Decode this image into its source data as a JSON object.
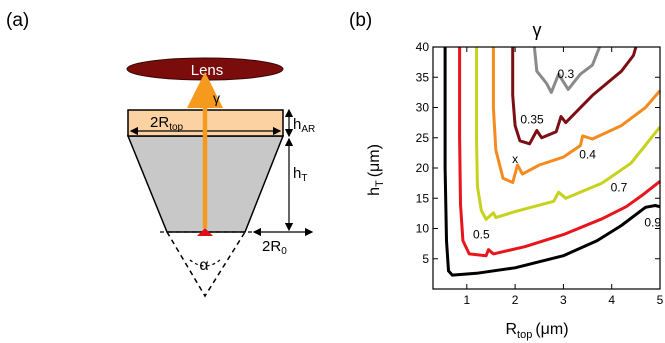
{
  "panel_a": {
    "label": "(a)",
    "lens_label": "Lens",
    "gamma_symbol": "γ",
    "width_top_label": "2R",
    "width_top_sub": "top",
    "h_ar_label": "h",
    "h_ar_sub": "AR",
    "h_t_label": "h",
    "h_t_sub": "T",
    "width_bottom_label": "2R",
    "width_bottom_sub": "0",
    "angle_label": "α",
    "colors": {
      "lens": "#7a0c0c",
      "ar_coating": "#fcd2a3",
      "cone": "#c8c8c8",
      "beam": "#f59a1e",
      "emitter": "#e01010"
    }
  },
  "panel_b": {
    "label": "(b)",
    "chart_data": {
      "type": "contour",
      "title": "γ",
      "xlabel": "R",
      "xlabel_sub": "top",
      "xlabel_unit": "(μm)",
      "ylabel": "h",
      "ylabel_sub": "T",
      "ylabel_unit": "(μm)",
      "xlim": [
        0.3,
        5
      ],
      "ylim": [
        0,
        40
      ],
      "x_ticks": [
        "1",
        "2",
        "3",
        "4",
        "5"
      ],
      "y_ticks": [
        "5",
        "10",
        "15",
        "20",
        "25",
        "30",
        "35",
        "40"
      ],
      "marker": {
        "label": "x",
        "x": 2.0,
        "y": 21.5
      },
      "series": [
        {
          "name": "0.9",
          "color": "#000000",
          "label_pos": [
            4.85,
            11.0
          ],
          "points": [
            [
              0.55,
              40
            ],
            [
              0.55,
              20
            ],
            [
              0.58,
              8
            ],
            [
              0.62,
              3
            ],
            [
              0.7,
              2.3
            ],
            [
              1.2,
              2.6
            ],
            [
              2,
              3.5
            ],
            [
              3,
              5.5
            ],
            [
              3.7,
              8
            ],
            [
              4.2,
              10.5
            ],
            [
              4.5,
              12.3
            ],
            [
              4.7,
              13.5
            ],
            [
              4.9,
              13.8
            ],
            [
              5,
              13.6
            ]
          ]
        },
        {
          "name": "0.7",
          "color": "#e8151b",
          "label_pos": [
            4.15,
            16.8
          ],
          "points": [
            [
              0.85,
              40
            ],
            [
              0.85,
              25
            ],
            [
              0.87,
              14
            ],
            [
              0.92,
              8
            ],
            [
              1.05,
              5.8
            ],
            [
              1.4,
              5.5
            ],
            [
              1.45,
              6.5
            ],
            [
              1.55,
              5.8
            ],
            [
              2.2,
              7
            ],
            [
              3,
              9
            ],
            [
              3.8,
              11.6
            ],
            [
              4.3,
              13.6
            ],
            [
              4.65,
              15.6
            ],
            [
              5,
              17.8
            ]
          ]
        },
        {
          "name": "0.5",
          "color": "#c7d21e",
          "label_pos": [
            1.3,
            9.0
          ],
          "points": [
            [
              1.2,
              40
            ],
            [
              1.2,
              25
            ],
            [
              1.22,
              17
            ],
            [
              1.3,
              13
            ],
            [
              1.4,
              11.5
            ],
            [
              1.55,
              12.6
            ],
            [
              1.6,
              11.8
            ],
            [
              2,
              12.8
            ],
            [
              2.8,
              14.5
            ],
            [
              2.9,
              16
            ],
            [
              3.05,
              15
            ],
            [
              3.8,
              17.5
            ],
            [
              4.4,
              20.8
            ],
            [
              5,
              26.8
            ]
          ]
        },
        {
          "name": "0.4",
          "color": "#f58b1f",
          "label_pos": [
            3.5,
            22.2
          ],
          "points": [
            [
              1.55,
              40
            ],
            [
              1.55,
              30
            ],
            [
              1.6,
              23
            ],
            [
              1.75,
              18.3
            ],
            [
              1.95,
              17.6
            ],
            [
              2.05,
              20.5
            ],
            [
              2.15,
              19
            ],
            [
              2.5,
              20.5
            ],
            [
              3,
              21.8
            ],
            [
              3.35,
              23.7
            ],
            [
              3.4,
              25.3
            ],
            [
              3.6,
              24.8
            ],
            [
              4.2,
              27
            ],
            [
              4.7,
              30
            ],
            [
              5,
              32.8
            ]
          ]
        },
        {
          "name": "0.35",
          "color": "#7b0f14",
          "label_pos": [
            2.35,
            28.0
          ],
          "points": [
            [
              1.95,
              40
            ],
            [
              1.95,
              32
            ],
            [
              2.0,
              27
            ],
            [
              2.1,
              24.5
            ],
            [
              2.3,
              24
            ],
            [
              2.45,
              26.2
            ],
            [
              2.55,
              25
            ],
            [
              2.85,
              26
            ],
            [
              2.95,
              28.5
            ],
            [
              3.05,
              27.5
            ],
            [
              3.6,
              32
            ],
            [
              4.2,
              36
            ],
            [
              4.45,
              38.6
            ],
            [
              4.5,
              40
            ]
          ]
        },
        {
          "name": "0.3",
          "color": "#8a8a8a",
          "label_pos": [
            3.05,
            35.5
          ],
          "points": [
            [
              2.4,
              40
            ],
            [
              2.45,
              36
            ],
            [
              2.65,
              34
            ],
            [
              2.75,
              32.5
            ],
            [
              2.9,
              35.5
            ],
            [
              3.1,
              33
            ],
            [
              3.35,
              35.5
            ],
            [
              3.6,
              37
            ],
            [
              3.75,
              40
            ]
          ]
        }
      ]
    }
  }
}
